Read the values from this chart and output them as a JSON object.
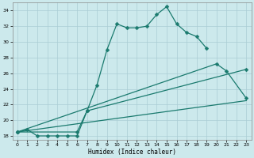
{
  "xlabel": "Humidex (Indice chaleur)",
  "bg_color": "#cce9ec",
  "grid_color": "#aacdd4",
  "line_color": "#1a7a6e",
  "xlim": [
    -0.5,
    23.5
  ],
  "ylim": [
    17.5,
    35.0
  ],
  "yticks": [
    18,
    20,
    22,
    24,
    26,
    28,
    30,
    32,
    34
  ],
  "xticks": [
    0,
    1,
    2,
    3,
    4,
    5,
    6,
    7,
    8,
    9,
    10,
    11,
    12,
    13,
    14,
    15,
    16,
    17,
    18,
    19,
    20,
    21,
    22,
    23
  ],
  "curve1_x": [
    0,
    1,
    2,
    3,
    4,
    5,
    6,
    7,
    8,
    9,
    10,
    11,
    12,
    13,
    14,
    15,
    16,
    17,
    18,
    19
  ],
  "curve1_y": [
    18.5,
    18.8,
    18.0,
    18.0,
    18.0,
    18.0,
    18.0,
    21.2,
    24.5,
    29.0,
    32.3,
    31.8,
    31.8,
    32.0,
    33.5,
    34.5,
    32.3,
    31.2,
    30.7,
    29.2
  ],
  "curve2_x": [
    0,
    20,
    21,
    23
  ],
  "curve2_y": [
    18.5,
    27.2,
    26.3,
    22.8
  ],
  "curve3_x": [
    0,
    6,
    7,
    23
  ],
  "curve3_y": [
    18.5,
    18.5,
    21.2,
    26.5
  ],
  "curve4_x": [
    0,
    23
  ],
  "curve4_y": [
    18.5,
    22.5
  ]
}
